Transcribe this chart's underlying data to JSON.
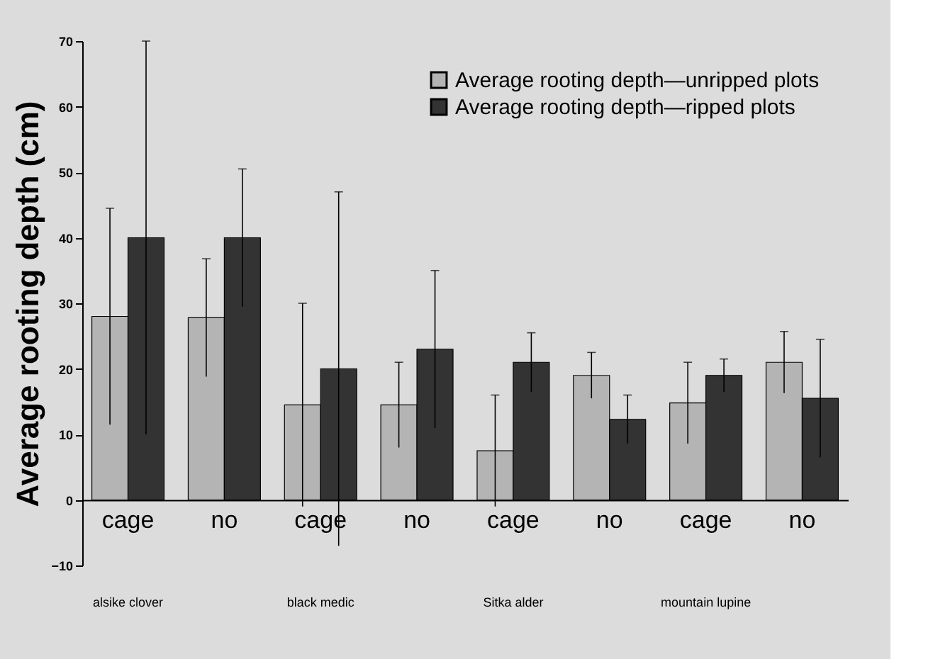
{
  "chart_data": {
    "type": "bar",
    "ylabel": "Average rooting depth (cm)",
    "categories": [
      "cage",
      "no",
      "cage",
      "no",
      "cage",
      "no",
      "cage",
      "no"
    ],
    "series": [
      {
        "name": "Average rooting depth—unripped plots",
        "color": "#b4b4b4",
        "values": [
          28,
          27.8,
          14.5,
          14.5,
          7.5,
          19,
          14.8,
          21
        ],
        "errors": [
          16.5,
          9,
          15.5,
          6.5,
          8.5,
          3.5,
          6.2,
          4.7
        ]
      },
      {
        "name": "Average rooting depth—ripped plots",
        "color": "#333333",
        "values": [
          40,
          40,
          20,
          23,
          21,
          12.3,
          19,
          15.5
        ],
        "errors": [
          30,
          10.5,
          27,
          12,
          4.5,
          3.7,
          2.5,
          9
        ]
      }
    ],
    "annotations": [
      "alsike clover",
      "black medic",
      "Sitka alder",
      "mountain lupine"
    ],
    "ylim": [
      -10,
      70
    ],
    "yticks": [
      -10,
      0,
      10,
      20,
      30,
      40,
      50,
      60,
      70
    ],
    "legend": "top right"
  }
}
